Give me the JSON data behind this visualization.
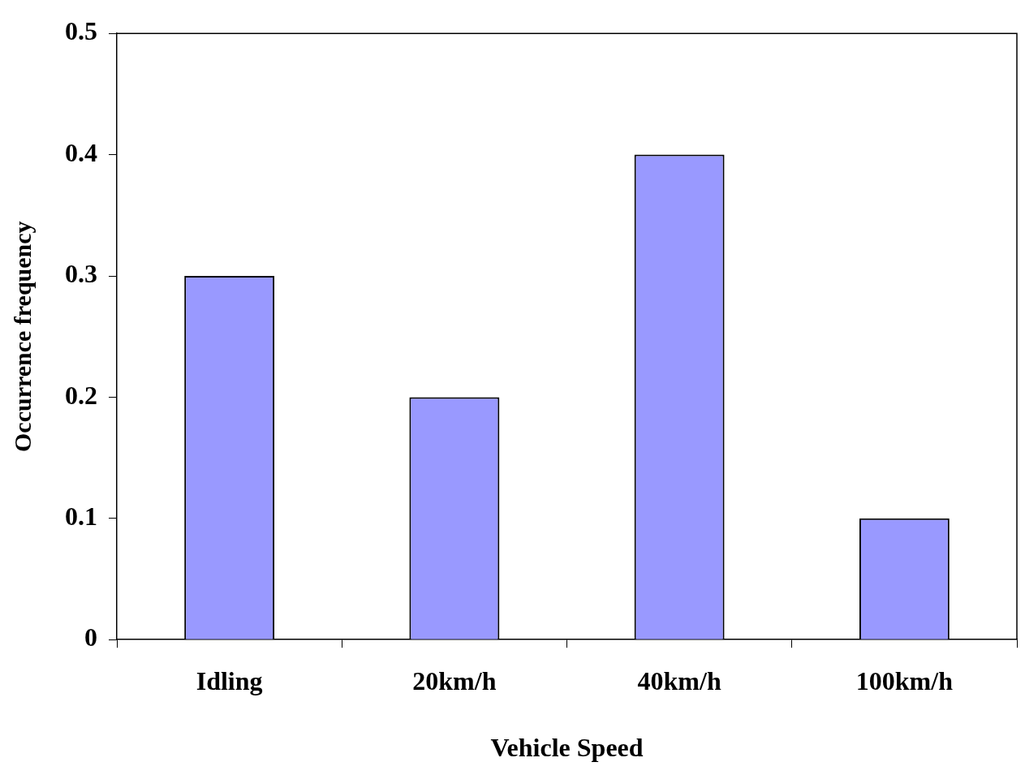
{
  "chart_data": {
    "type": "bar",
    "xlabel": "Vehicle Speed",
    "ylabel": "Occurrence frequency",
    "categories": [
      "Idling",
      "20km/h",
      "40km/h",
      "100km/h"
    ],
    "values": [
      0.3,
      0.2,
      0.4,
      0.1
    ],
    "color": "#9999ff",
    "ylim": [
      0,
      0.5
    ],
    "yticks": [
      0,
      0.1,
      0.2,
      0.3,
      0.4,
      0.5
    ],
    "grid": false,
    "legend": false
  }
}
